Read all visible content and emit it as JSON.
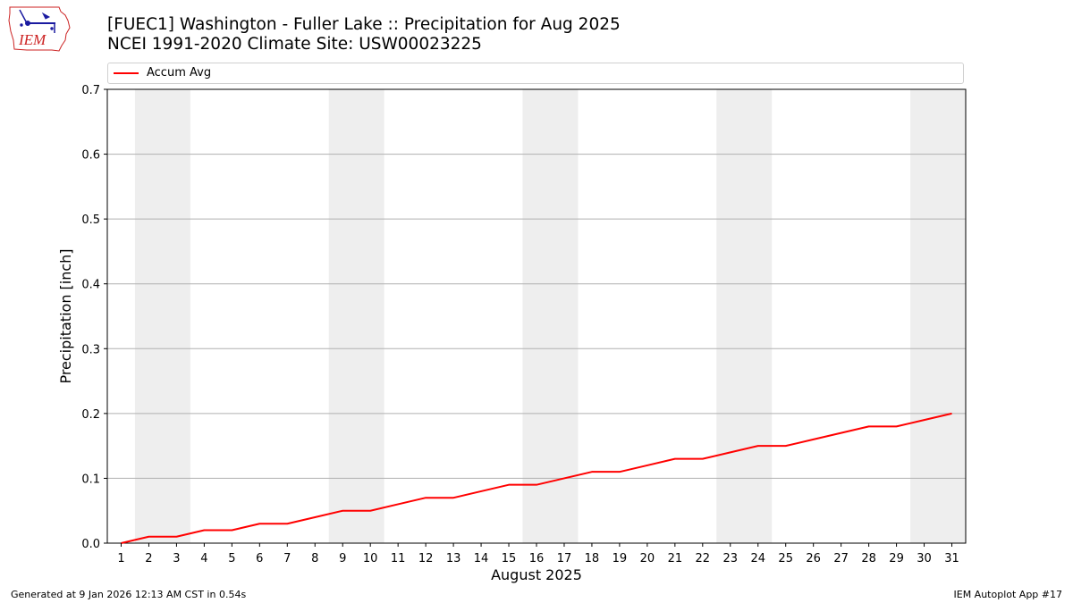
{
  "header": {
    "logo_text": "IEM",
    "title_line1": "[FUEC1] Washington - Fuller Lake :: Precipitation for Aug 2025",
    "title_line2": "NCEI 1991-2020 Climate Site: USW00023225"
  },
  "footer": {
    "left": "Generated at 9 Jan 2026 12:13 AM CST in 0.54s",
    "right": "IEM Autoplot App #17"
  },
  "colors": {
    "line": "#ff0000",
    "weekend_band": "#eeeeee",
    "grid": "#b0b0b0",
    "logo": "#cc2222",
    "logo_icon": "#1a1aa0"
  },
  "chart_data": {
    "type": "line",
    "xlabel": "August 2025",
    "ylabel": "Precipitation [inch]",
    "ylim": [
      0,
      0.7
    ],
    "yticks": [
      "0.0",
      "0.1",
      "0.2",
      "0.3",
      "0.4",
      "0.5",
      "0.6",
      "0.7"
    ],
    "grid": "horizontal",
    "legend_position": "top",
    "x": [
      1,
      2,
      3,
      4,
      5,
      6,
      7,
      8,
      9,
      10,
      11,
      12,
      13,
      14,
      15,
      16,
      17,
      18,
      19,
      20,
      21,
      22,
      23,
      24,
      25,
      26,
      27,
      28,
      29,
      30,
      31
    ],
    "xticks": [
      "1",
      "2",
      "3",
      "4",
      "5",
      "6",
      "7",
      "8",
      "9",
      "10",
      "11",
      "12",
      "13",
      "14",
      "15",
      "16",
      "17",
      "18",
      "19",
      "20",
      "21",
      "22",
      "23",
      "24",
      "25",
      "26",
      "27",
      "28",
      "29",
      "30",
      "31"
    ],
    "weekend_days": [
      2,
      3,
      9,
      10,
      16,
      17,
      23,
      24,
      30,
      31
    ],
    "series": [
      {
        "name": "Accum Avg",
        "color": "#ff0000",
        "values": [
          0.0,
          0.01,
          0.01,
          0.02,
          0.02,
          0.03,
          0.03,
          0.04,
          0.05,
          0.05,
          0.06,
          0.07,
          0.07,
          0.08,
          0.09,
          0.09,
          0.1,
          0.11,
          0.11,
          0.12,
          0.13,
          0.13,
          0.14,
          0.15,
          0.15,
          0.16,
          0.17,
          0.18,
          0.18,
          0.19,
          0.2
        ]
      }
    ]
  }
}
